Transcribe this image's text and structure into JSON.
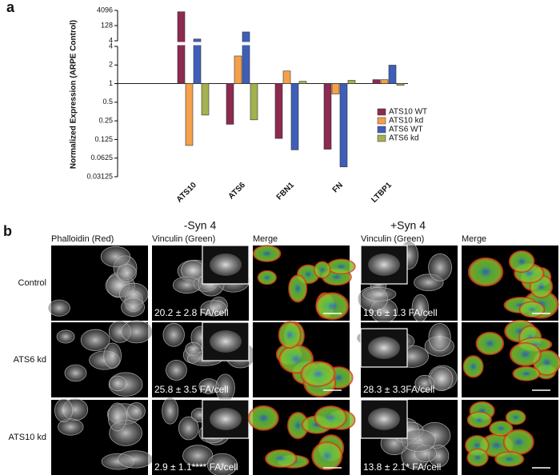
{
  "chart_data": {
    "type": "bar",
    "log_base": 2,
    "ylabel": "Normalized Expression (ARPE Control)",
    "categories": [
      "ATS10",
      "ATS6",
      "FBN1",
      "FN",
      "LTBP1"
    ],
    "series": [
      {
        "name": "ATS10 WT",
        "color": "#8c2a4f",
        "values": [
          3000,
          0.22,
          0.13,
          0.087,
          1.16
        ]
      },
      {
        "name": "ATS10 kd",
        "color": "#f5a04a",
        "values": [
          0.1,
          2.8,
          1.6,
          0.68,
          1.16
        ]
      },
      {
        "name": "ATS6 WT",
        "color": "#3f5eb8",
        "values": [
          6,
          30,
          0.085,
          0.045,
          1.99
        ]
      },
      {
        "name": "ATS6 kd",
        "color": "#a3b14e",
        "values": [
          0.31,
          0.26,
          1.09,
          1.13,
          0.94
        ]
      }
    ],
    "baseline": 1,
    "ylim": [
      0.03125,
      4
    ],
    "yticks": [
      0.03125,
      0.0625,
      0.125,
      0.25,
      0.5,
      1,
      2,
      4
    ],
    "ylim_upper": [
      4,
      4096
    ],
    "yticks_upper": [
      4,
      128,
      4096
    ],
    "legend": "right"
  },
  "panel_labels": [
    "a",
    "b"
  ],
  "panel_b": {
    "groups": [
      "-Syn 4",
      "+Syn 4"
    ],
    "columns": [
      "Phalloidin (Red)",
      "Vinculin (Green)",
      "Merge",
      "Vinculin (Green)",
      "Merge"
    ],
    "rows": [
      "Control",
      "ATS6 kd",
      "ATS10 kd"
    ],
    "annotations": [
      [
        "20.2 ± 2.8 FA/cell",
        "19.6 ± 1.3 FA/cell"
      ],
      [
        "25.8 ± 3.5 FA/cell",
        "28.3 ± 3.3FA/cell"
      ],
      [
        "2.9 ± 1.1**** FA/cell",
        "13.8 ± 2.1* FA/cell"
      ]
    ]
  }
}
